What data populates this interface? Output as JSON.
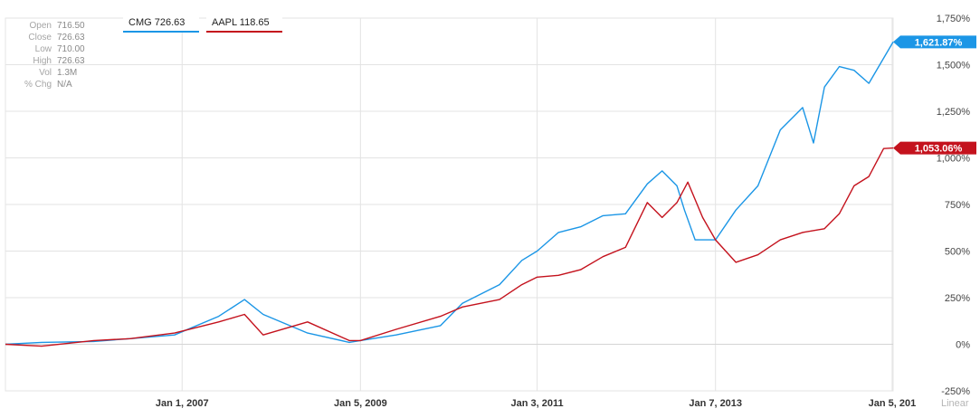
{
  "ohlc": [
    {
      "label": "Open",
      "value": "716.50"
    },
    {
      "label": "Close",
      "value": "726.63"
    },
    {
      "label": "Low",
      "value": "710.00"
    },
    {
      "label": "High",
      "value": "726.63"
    },
    {
      "label": "Vol",
      "value": "1.3M"
    },
    {
      "label": "% Chg",
      "value": "N/A"
    }
  ],
  "legend": [
    {
      "text": "CMG 726.63",
      "color": "#1b96e6"
    },
    {
      "text": "AAPL 118.65",
      "color": "#c4121d"
    }
  ],
  "scale_label": "Linear",
  "chart_data": {
    "type": "line",
    "y_unit": "%",
    "ylim": [
      -250,
      1750
    ],
    "y_ticks": [
      "1,750%",
      "1,500%",
      "1,250%",
      "1,000%",
      "750%",
      "500%",
      "250%",
      "0%",
      "-250%"
    ],
    "y_tick_values": [
      1750,
      1500,
      1250,
      1000,
      750,
      500,
      250,
      0,
      -250
    ],
    "x_range": [
      "2005-01-03",
      "2015-01-09"
    ],
    "x_ticks": [
      "Jan 1, 2007",
      "Jan 5, 2009",
      "Jan 3, 2011",
      "Jan 7, 2013",
      "Jan 5, 201"
    ],
    "x_tick_dates": [
      "2007-01-01",
      "2009-01-05",
      "2011-01-03",
      "2013-01-07",
      "2015-01-05"
    ],
    "grid": true,
    "legend_position": "top-left",
    "series": [
      {
        "name": "CMG",
        "color": "#1b96e6",
        "last_label": "1,621.87%",
        "x": [
          "2005-01-03",
          "2005-06-01",
          "2006-01-02",
          "2006-06-01",
          "2006-12-01",
          "2007-06-01",
          "2007-09-15",
          "2007-12-01",
          "2008-06-01",
          "2008-11-20",
          "2009-01-05",
          "2009-06-01",
          "2009-12-01",
          "2010-03-01",
          "2010-08-01",
          "2010-11-01",
          "2011-01-03",
          "2011-04-01",
          "2011-07-01",
          "2011-10-01",
          "2012-01-02",
          "2012-04-01",
          "2012-06-01",
          "2012-08-01",
          "2012-09-01",
          "2012-10-15",
          "2013-01-07",
          "2013-04-01",
          "2013-07-01",
          "2013-10-01",
          "2014-01-01",
          "2014-02-15",
          "2014-04-01",
          "2014-06-01",
          "2014-08-01",
          "2014-10-01",
          "2015-01-09"
        ],
        "values": [
          0,
          10,
          15,
          30,
          50,
          150,
          240,
          160,
          60,
          10,
          20,
          50,
          100,
          220,
          320,
          450,
          500,
          600,
          630,
          690,
          700,
          860,
          930,
          850,
          720,
          560,
          560,
          720,
          850,
          1150,
          1270,
          1080,
          1380,
          1490,
          1470,
          1400,
          1622
        ]
      },
      {
        "name": "AAPL",
        "color": "#c4121d",
        "last_label": "1,053.06%",
        "x": [
          "2005-01-03",
          "2005-06-01",
          "2006-01-02",
          "2006-06-01",
          "2006-12-01",
          "2007-06-01",
          "2007-09-15",
          "2007-12-01",
          "2008-06-01",
          "2008-11-20",
          "2009-01-05",
          "2009-06-01",
          "2009-12-01",
          "2010-03-01",
          "2010-08-01",
          "2010-11-01",
          "2011-01-03",
          "2011-04-01",
          "2011-07-01",
          "2011-10-01",
          "2012-01-02",
          "2012-04-01",
          "2012-06-01",
          "2012-08-01",
          "2012-09-15",
          "2012-11-15",
          "2013-01-07",
          "2013-04-01",
          "2013-07-01",
          "2013-10-01",
          "2014-01-01",
          "2014-04-01",
          "2014-06-01",
          "2014-08-01",
          "2014-10-01",
          "2014-12-01",
          "2015-01-09"
        ],
        "values": [
          0,
          -10,
          20,
          30,
          60,
          120,
          160,
          50,
          120,
          20,
          20,
          80,
          150,
          200,
          240,
          320,
          360,
          370,
          400,
          470,
          520,
          760,
          680,
          760,
          870,
          680,
          560,
          440,
          480,
          560,
          600,
          620,
          700,
          850,
          900,
          1050,
          1053
        ]
      }
    ]
  }
}
